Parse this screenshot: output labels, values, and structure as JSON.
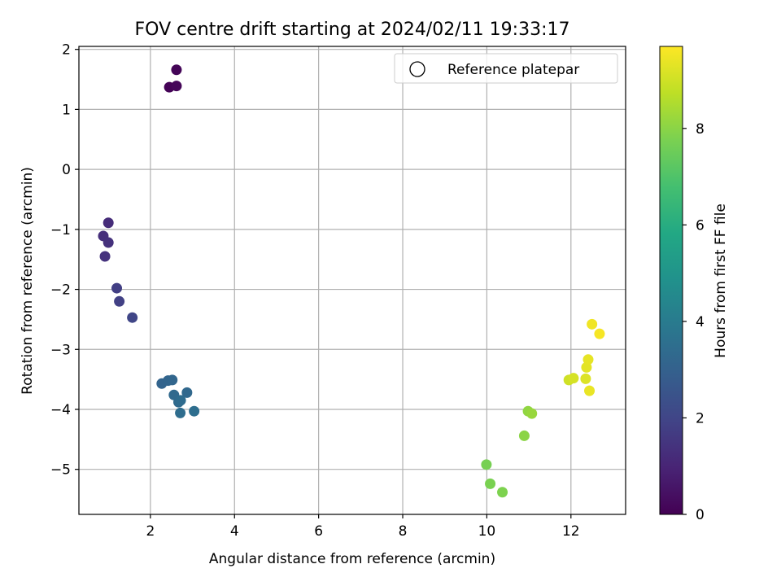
{
  "chart_data": {
    "type": "scatter",
    "title": "FOV centre drift starting at 2024/02/11 19:33:17",
    "xlabel": "Angular distance from reference (arcmin)",
    "ylabel": "Rotation from reference (arcmin)",
    "xlim": [
      0.3,
      13.3
    ],
    "ylim": [
      -5.75,
      2.05
    ],
    "xticks": [
      2,
      4,
      6,
      8,
      10,
      12
    ],
    "yticks": [
      -5,
      -4,
      -3,
      -2,
      -1,
      0,
      1,
      2
    ],
    "grid": true,
    "legend": {
      "placement": "top-right",
      "entries": [
        "Reference platepar"
      ]
    },
    "colorbar": {
      "label": "Hours from first FF file",
      "colormap": "viridis",
      "range": [
        0,
        9.7
      ],
      "ticks": [
        0,
        2,
        4,
        6,
        8
      ]
    },
    "points": [
      {
        "x": 2.45,
        "y": 1.37,
        "c": 0.05
      },
      {
        "x": 2.62,
        "y": 1.39,
        "c": 0.15
      },
      {
        "x": 2.62,
        "y": 1.66,
        "c": 0.1
      },
      {
        "x": 1.0,
        "y": -0.89,
        "c": 1.2
      },
      {
        "x": 0.88,
        "y": -1.11,
        "c": 1.3
      },
      {
        "x": 1.0,
        "y": -1.22,
        "c": 1.35
      },
      {
        "x": 0.92,
        "y": -1.45,
        "c": 1.4
      },
      {
        "x": 1.2,
        "y": -1.98,
        "c": 1.8
      },
      {
        "x": 1.26,
        "y": -2.2,
        "c": 1.85
      },
      {
        "x": 1.57,
        "y": -2.47,
        "c": 2.0
      },
      {
        "x": 2.27,
        "y": -3.57,
        "c": 3.1
      },
      {
        "x": 2.42,
        "y": -3.52,
        "c": 3.15
      },
      {
        "x": 2.52,
        "y": -3.51,
        "c": 3.2
      },
      {
        "x": 2.87,
        "y": -3.72,
        "c": 3.25
      },
      {
        "x": 2.56,
        "y": -3.76,
        "c": 3.3
      },
      {
        "x": 2.67,
        "y": -3.88,
        "c": 3.35
      },
      {
        "x": 2.72,
        "y": -3.85,
        "c": 3.4
      },
      {
        "x": 2.71,
        "y": -4.06,
        "c": 3.45
      },
      {
        "x": 3.04,
        "y": -4.03,
        "c": 3.5
      },
      {
        "x": 9.99,
        "y": -4.92,
        "c": 7.7
      },
      {
        "x": 10.08,
        "y": -5.24,
        "c": 7.75
      },
      {
        "x": 10.37,
        "y": -5.38,
        "c": 7.8
      },
      {
        "x": 10.89,
        "y": -4.44,
        "c": 8.0
      },
      {
        "x": 10.98,
        "y": -4.03,
        "c": 8.1
      },
      {
        "x": 11.07,
        "y": -4.07,
        "c": 8.2
      },
      {
        "x": 11.95,
        "y": -3.51,
        "c": 9.0
      },
      {
        "x": 12.06,
        "y": -3.48,
        "c": 9.1
      },
      {
        "x": 12.35,
        "y": -3.49,
        "c": 9.2
      },
      {
        "x": 12.37,
        "y": -3.3,
        "c": 9.3
      },
      {
        "x": 12.41,
        "y": -3.17,
        "c": 9.35
      },
      {
        "x": 12.44,
        "y": -3.69,
        "c": 9.4
      },
      {
        "x": 12.5,
        "y": -2.58,
        "c": 9.5
      },
      {
        "x": 12.68,
        "y": -2.74,
        "c": 9.6
      }
    ]
  }
}
